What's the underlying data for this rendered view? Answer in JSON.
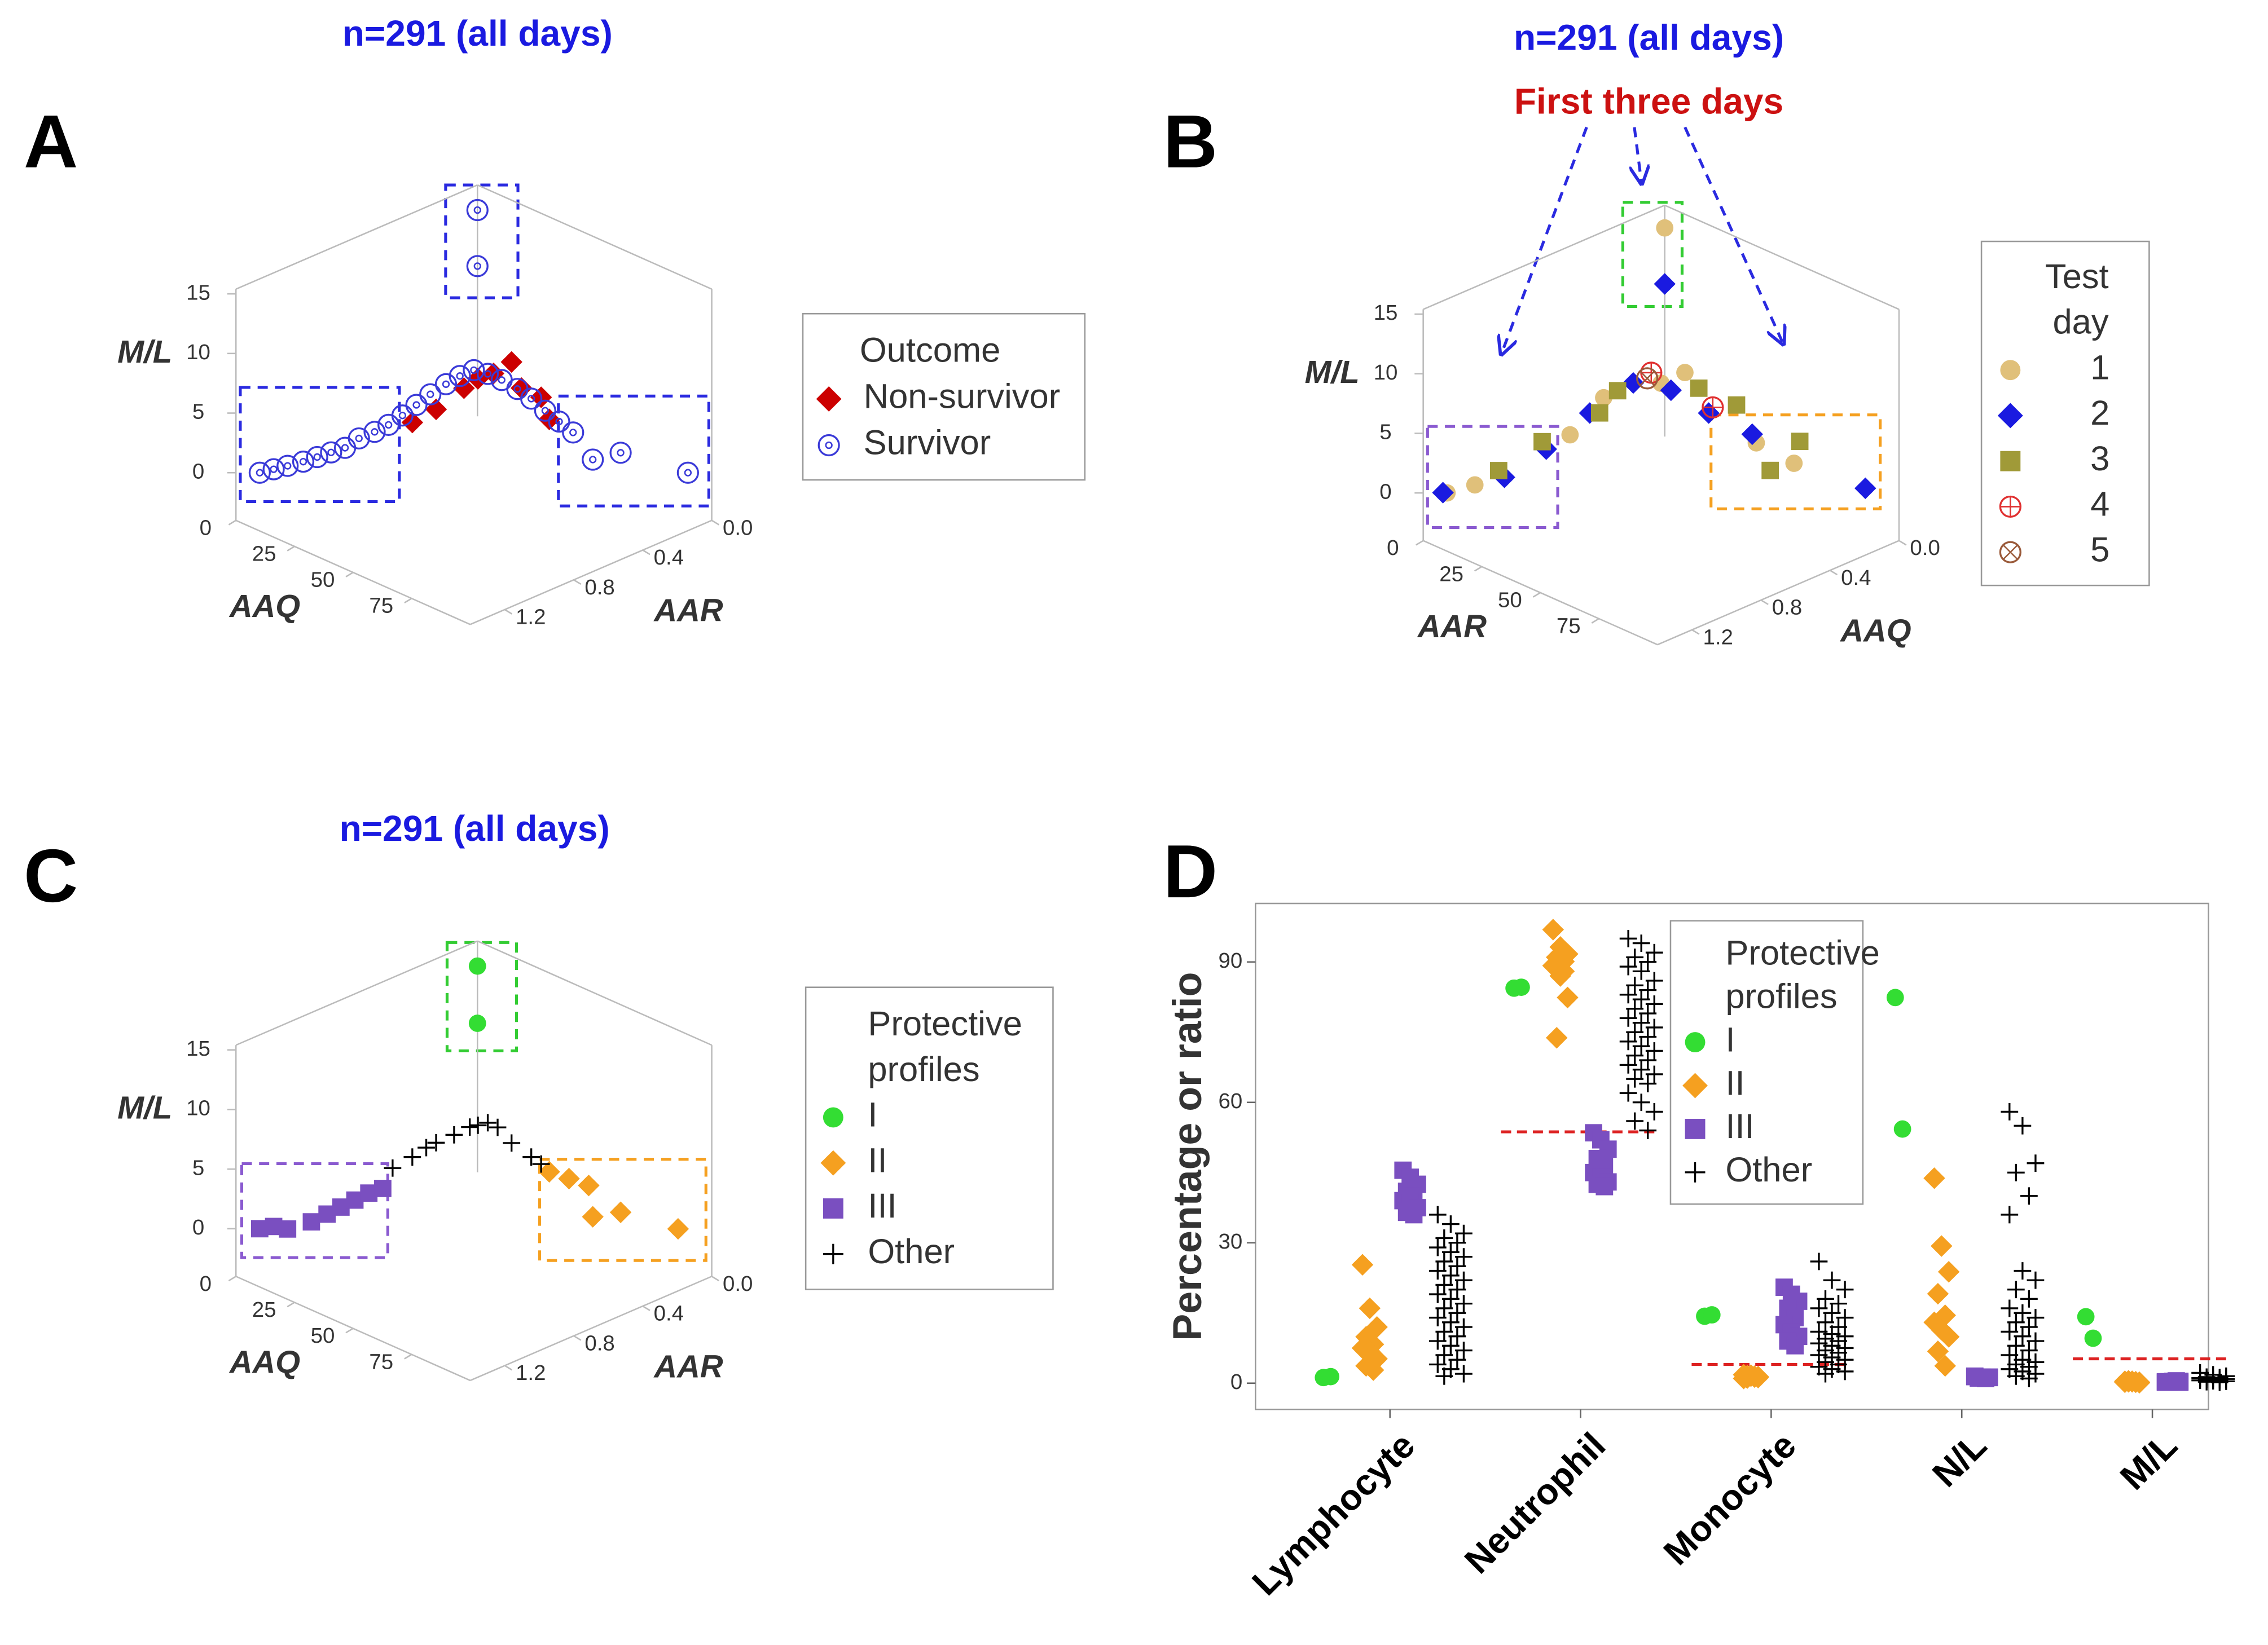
{
  "chart_data": [
    {
      "type": "scatter3d",
      "panel_label": "A",
      "title": "n=291 (all days)",
      "xlabel": "AAQ",
      "ylabel": "AAR",
      "zlabel": "M/L",
      "xlim": [
        0,
        100
      ],
      "ylim": [
        0,
        1.4
      ],
      "zlim": [
        -4,
        15.4
      ],
      "xticks": [
        0,
        25,
        50,
        75
      ],
      "yticks": [
        {
          "value": 0,
          "label": "0.0"
        },
        0.4,
        0.8,
        1.2
      ],
      "zticks": [
        0,
        5,
        10,
        15
      ],
      "legend_title": "Outcome",
      "series": [
        {
          "name": "Non-survivor",
          "color": "#cc0000",
          "marker": "diamond",
          "x": [
            37,
            42,
            48,
            51,
            54,
            58,
            60,
            64,
            66
          ],
          "y": [
            0.88,
            0.81,
            0.73,
            0.69,
            0.64,
            0.59,
            0.56,
            0.5,
            0.48
          ],
          "z": [
            4.2,
            5.3,
            7.1,
            7.9,
            8.3,
            9.3,
            7.1,
            6.3,
            4.5
          ]
        },
        {
          "name": "Survivor",
          "color": "#3a3ad8",
          "marker": "circle-dot",
          "x": [
            5,
            8,
            11,
            14,
            17,
            20,
            23,
            26,
            29,
            32,
            35,
            38,
            41,
            44,
            47,
            50,
            53,
            56,
            59,
            62,
            65,
            68,
            71,
            75,
            81,
            95,
            0,
            0
          ],
          "y": [
            1.33,
            1.29,
            1.25,
            1.2,
            1.16,
            1.12,
            1.08,
            1.04,
            0.99,
            0.95,
            0.91,
            0.87,
            0.83,
            0.78,
            0.74,
            0.7,
            0.66,
            0.62,
            0.57,
            0.53,
            0.49,
            0.45,
            0.41,
            0.35,
            0.27,
            0.07,
            0,
            0
          ],
          "z": [
            0,
            0.3,
            0.6,
            0.9,
            1.3,
            1.7,
            2.1,
            2.9,
            3.4,
            4,
            4.8,
            5.7,
            6.6,
            7.4,
            8.1,
            8.6,
            8.3,
            7.8,
            7,
            6.2,
            5.2,
            4.3,
            3.4,
            1.1,
            1.7,
            0,
            13.3,
            8.6
          ]
        }
      ]
    },
    {
      "type": "scatter3d",
      "panel_label": "B",
      "title": "n=291 (all days)",
      "annotation": "First three days",
      "xlabel": "AAR",
      "ylabel": "AAQ",
      "zlabel": "M/L",
      "xlim": [
        0,
        100
      ],
      "ylim": [
        0,
        1.4
      ],
      "zlim": [
        -4,
        15.4
      ],
      "xticks": [
        0,
        25,
        50,
        75
      ],
      "yticks": [
        {
          "value": 0,
          "label": "0.0"
        },
        0.4,
        0.8,
        1.2
      ],
      "zticks": [
        0,
        5,
        10,
        15
      ],
      "legend_title": [
        "Test",
        "day"
      ],
      "series": [
        {
          "name": "1",
          "color": "#e0c07a",
          "marker": "circle",
          "x": [
            0,
            5,
            11,
            31,
            38,
            50,
            55,
            70,
            78
          ],
          "y": [
            0,
            1.33,
            1.25,
            0.97,
            0.87,
            0.7,
            0.63,
            0.42,
            0.31
          ],
          "z": [
            13.5,
            0,
            0.7,
            4.9,
            8,
            9.2,
            10.1,
            4.2,
            2.5
          ]
        },
        {
          "name": "2",
          "color": "#1a1ae0",
          "marker": "diamond",
          "x": [
            0,
            4,
            17,
            26,
            35,
            44,
            52,
            60,
            69,
            93
          ],
          "y": [
            0,
            1.34,
            1.16,
            1.04,
            0.91,
            0.78,
            0.67,
            0.56,
            0.43,
            0.1
          ],
          "z": [
            8.8,
            0,
            1.3,
            3.7,
            6.7,
            9.2,
            8.6,
            6.7,
            4.9,
            0.4
          ]
        },
        {
          "name": "3",
          "color": "#a09a38",
          "marker": "square",
          "x": [
            16,
            25,
            37,
            41,
            58,
            66,
            73,
            79
          ],
          "y": [
            1.18,
            1.05,
            0.88,
            0.83,
            0.59,
            0.48,
            0.38,
            0.29
          ],
          "z": [
            1.9,
            4.3,
            6.7,
            8.6,
            8.8,
            7.4,
            1.9,
            4.3
          ]
        },
        {
          "name": "4",
          "color": "#e03030",
          "marker": "circle-plus",
          "x": [
            48,
            61
          ],
          "y": [
            0.73,
            0.55
          ],
          "z": [
            10.1,
            7.2
          ]
        },
        {
          "name": "5",
          "color": "#9a5a3a",
          "marker": "circle-x",
          "x": [
            47
          ],
          "y": [
            0.74
          ],
          "z": [
            9.6
          ]
        }
      ]
    },
    {
      "type": "scatter3d",
      "panel_label": "C",
      "title": "n=291 (all days)",
      "xlabel": "AAQ",
      "ylabel": "AAR",
      "zlabel": "M/L",
      "xlim": [
        0,
        100
      ],
      "ylim": [
        0,
        1.4
      ],
      "zlim": [
        -4,
        15.4
      ],
      "xticks": [
        0,
        25,
        50,
        75
      ],
      "yticks": [
        {
          "value": 0,
          "label": "0.0"
        },
        0.4,
        0.8,
        1.2
      ],
      "zticks": [
        0,
        5,
        10,
        15
      ],
      "legend_title": [
        "Protective",
        "profiles"
      ],
      "series": [
        {
          "name": "I",
          "color": "#33dd33",
          "marker": "circle",
          "x": [
            0,
            0
          ],
          "y": [
            0,
            0
          ],
          "z": [
            13.3,
            8.5
          ]
        },
        {
          "name": "II",
          "color": "#f5a020",
          "marker": "diamond",
          "x": [
            66,
            70,
            74,
            75,
            81,
            93
          ],
          "y": [
            0.48,
            0.42,
            0.36,
            0.35,
            0.27,
            0.1
          ],
          "z": [
            4.8,
            4.2,
            3.6,
            1,
            1.4,
            0
          ]
        },
        {
          "name": "III",
          "color": "#7a4fc0",
          "marker": "square",
          "x": [
            5,
            8,
            11,
            16,
            19,
            22,
            25,
            28,
            31
          ],
          "y": [
            1.33,
            1.29,
            1.25,
            1.18,
            1.13,
            1.09,
            1.05,
            1.01,
            0.97
          ],
          "z": [
            0,
            0.2,
            0,
            0.6,
            1.2,
            1.8,
            2.4,
            3,
            3.4
          ]
        },
        {
          "name": "Other",
          "color": "#000000",
          "marker": "plus",
          "x": [
            33,
            37,
            40,
            42,
            46,
            49,
            51,
            53,
            55,
            58,
            62,
            64
          ],
          "y": [
            0.94,
            0.88,
            0.84,
            0.81,
            0.76,
            0.71,
            0.69,
            0.66,
            0.63,
            0.59,
            0.53,
            0.5
          ],
          "z": [
            5.1,
            6,
            6.8,
            7.2,
            7.9,
            8.5,
            8.7,
            8.9,
            8.5,
            7.2,
            6,
            5.4
          ]
        }
      ]
    },
    {
      "type": "strip",
      "panel_label": "D",
      "ylabel": "Percentage or ratio",
      "categories": [
        "Lymphocyte",
        "Neutrophil",
        "Monocyte",
        "N/L",
        "M/L"
      ],
      "ylim": [
        -5.6,
        102.5
      ],
      "yticks": [
        0,
        30,
        60,
        90
      ],
      "reference_values": [
        null,
        53.7,
        4,
        null,
        5.2
      ],
      "reference_color": "#dd2222",
      "legend_title": [
        "Protective",
        "profiles"
      ],
      "series": [
        {
          "name": "I",
          "color": "#33dd33",
          "marker": "circle",
          "values": [
            [
              1.2,
              1.4
            ],
            [
              84.4,
              84.6
            ],
            [
              14.3,
              14.6
            ],
            [
              82.4,
              54.3
            ],
            [
              14.2,
              9.6
            ]
          ]
        },
        {
          "name": "II",
          "color": "#f5a020",
          "marker": "diamond",
          "values": [
            [
              25.3,
              16,
              12,
              9.9,
              8.3,
              7.5,
              6.8,
              5.2,
              3.7,
              2.8
            ],
            [
              96.9,
              93.2,
              91.7,
              91,
              90.1,
              89.2,
              87,
              82.4,
              73.8,
              88
            ],
            [
              1.8,
              1.5,
              1.2,
              1.6,
              1.3,
              1,
              1.7,
              1.4,
              1.1,
              1.5
            ],
            [
              43.8,
              29.3,
              23.8,
              19.1,
              14.5,
              13,
              11.4,
              9.9,
              6.8,
              3.7
            ],
            [
              0.4,
              0.3,
              0.2,
              0.5,
              0.3,
              0.2,
              0.4,
              0.1,
              0.3,
              0.2
            ]
          ]
        },
        {
          "name": "III",
          "color": "#7a4fc0",
          "marker": "square",
          "values": [
            [
              45.5,
              44,
              42.5,
              41,
              40,
              39,
              38.5,
              37.5,
              36.5,
              36
            ],
            [
              53.5,
              52,
              50,
              48,
              46.5,
              45,
              44,
              43,
              42.5,
              42
            ],
            [
              20.5,
              19,
              17.5,
              16,
              14,
              12.5,
              11,
              10,
              9,
              8
            ],
            [
              1.5,
              1.3,
              1.2,
              1.1,
              1,
              1.4,
              1.2,
              1.3,
              1.1,
              1
            ],
            [
              0.3,
              0.4,
              0.2,
              0.3,
              0.5,
              0.2,
              0.3,
              0.4,
              0.2,
              0.3
            ]
          ]
        },
        {
          "name": "Other",
          "color": "#000000",
          "marker": "plus",
          "values": [
            [
              36,
              34,
              32,
              31,
              30,
              29,
              28,
              27,
              26,
              25,
              24,
              23,
              22,
              21,
              20,
              19,
              18,
              17,
              16,
              15,
              14,
              13,
              12,
              11,
              10,
              9,
              8,
              7,
              6,
              5,
              4,
              3,
              2,
              1.5
            ],
            [
              95,
              94,
              92,
              91,
              90,
              89,
              88,
              86,
              85,
              84,
              83,
              82,
              81,
              80,
              79,
              78,
              77,
              76,
              75,
              74,
              73,
              72,
              71,
              70,
              69,
              68,
              67,
              66,
              65,
              64,
              62,
              60,
              58,
              56,
              54
            ],
            [
              26,
              22,
              20,
              18,
              17,
              16,
              15,
              14,
              13,
              12,
              11,
              10.5,
              10,
              9.5,
              9,
              8.5,
              8,
              7.5,
              7,
              6.5,
              6,
              5.5,
              5,
              4.5,
              4,
              3.5,
              3,
              2.5,
              2
            ],
            [
              58,
              55,
              47,
              45,
              40,
              36,
              24,
              22,
              20,
              18,
              16,
              15,
              14,
              13,
              12,
              11,
              10,
              9,
              8,
              7,
              6,
              5,
              4.5,
              4,
              3.5,
              3,
              2.5,
              2,
              1.5,
              1
            ],
            [
              2.2,
              1.8,
              1.5,
              1.3,
              1.2,
              1.1,
              1,
              0.9,
              0.8,
              0.7,
              0.6,
              0.5,
              0.4,
              0.3,
              0.2
            ]
          ]
        }
      ]
    }
  ]
}
